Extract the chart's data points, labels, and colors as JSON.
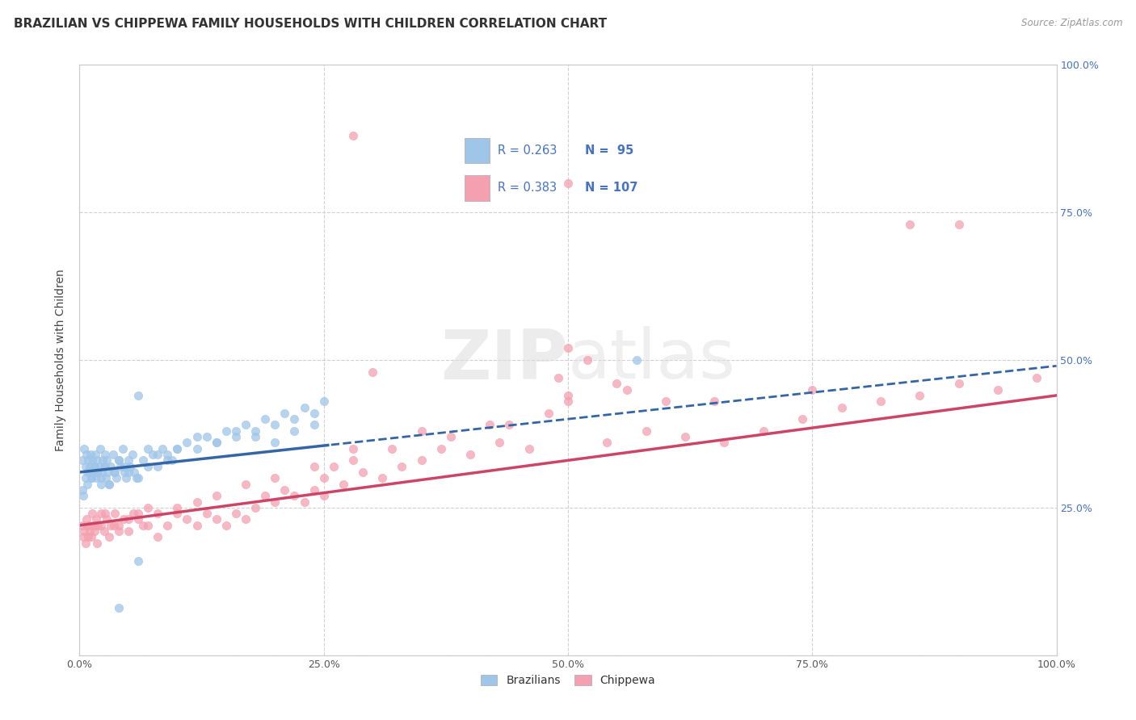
{
  "title": "BRAZILIAN VS CHIPPEWA FAMILY HOUSEHOLDS WITH CHILDREN CORRELATION CHART",
  "source": "Source: ZipAtlas.com",
  "ylabel": "Family Households with Children",
  "brazil_R": 0.263,
  "brazil_N": 95,
  "chippewa_R": 0.383,
  "chippewa_N": 107,
  "brazil_color": "#9fc5e8",
  "chippewa_color": "#f4a0b0",
  "brazil_line_color": "#3465a4",
  "chippewa_line_color": "#cc4466",
  "background_color": "#ffffff",
  "grid_color": "#cccccc",
  "right_axis_color": "#4472c4",
  "title_fontsize": 11,
  "xlim": [
    0,
    1
  ],
  "ylim": [
    0,
    1
  ],
  "brazil_x": [
    0.003,
    0.005,
    0.006,
    0.007,
    0.008,
    0.009,
    0.01,
    0.011,
    0.012,
    0.013,
    0.014,
    0.015,
    0.016,
    0.017,
    0.018,
    0.019,
    0.02,
    0.021,
    0.022,
    0.023,
    0.024,
    0.025,
    0.026,
    0.027,
    0.028,
    0.029,
    0.03,
    0.032,
    0.034,
    0.036,
    0.038,
    0.04,
    0.042,
    0.044,
    0.046,
    0.048,
    0.05,
    0.052,
    0.054,
    0.056,
    0.058,
    0.06,
    0.065,
    0.07,
    0.075,
    0.08,
    0.085,
    0.09,
    0.095,
    0.1,
    0.11,
    0.12,
    0.13,
    0.14,
    0.15,
    0.16,
    0.17,
    0.18,
    0.19,
    0.2,
    0.21,
    0.22,
    0.23,
    0.24,
    0.25,
    0.003,
    0.004,
    0.006,
    0.008,
    0.01,
    0.012,
    0.015,
    0.018,
    0.022,
    0.026,
    0.03,
    0.035,
    0.04,
    0.045,
    0.05,
    0.06,
    0.07,
    0.08,
    0.09,
    0.1,
    0.12,
    0.14,
    0.16,
    0.18,
    0.2,
    0.22,
    0.24,
    0.57,
    0.06,
    0.04
  ],
  "brazil_y": [
    0.33,
    0.35,
    0.32,
    0.34,
    0.31,
    0.33,
    0.32,
    0.34,
    0.3,
    0.33,
    0.31,
    0.32,
    0.34,
    0.3,
    0.33,
    0.31,
    0.32,
    0.35,
    0.29,
    0.31,
    0.33,
    0.32,
    0.34,
    0.3,
    0.33,
    0.31,
    0.29,
    0.32,
    0.34,
    0.31,
    0.3,
    0.33,
    0.32,
    0.35,
    0.31,
    0.3,
    0.33,
    0.32,
    0.34,
    0.31,
    0.3,
    0.44,
    0.33,
    0.35,
    0.34,
    0.32,
    0.35,
    0.34,
    0.33,
    0.35,
    0.36,
    0.35,
    0.37,
    0.36,
    0.38,
    0.37,
    0.39,
    0.38,
    0.4,
    0.39,
    0.41,
    0.4,
    0.42,
    0.41,
    0.43,
    0.28,
    0.27,
    0.3,
    0.29,
    0.31,
    0.3,
    0.32,
    0.31,
    0.3,
    0.32,
    0.29,
    0.31,
    0.33,
    0.32,
    0.31,
    0.3,
    0.32,
    0.34,
    0.33,
    0.35,
    0.37,
    0.36,
    0.38,
    0.37,
    0.36,
    0.38,
    0.39,
    0.5,
    0.16,
    0.08
  ],
  "chippewa_x": [
    0.003,
    0.005,
    0.007,
    0.009,
    0.011,
    0.013,
    0.015,
    0.017,
    0.019,
    0.022,
    0.025,
    0.028,
    0.032,
    0.036,
    0.04,
    0.045,
    0.05,
    0.055,
    0.06,
    0.065,
    0.07,
    0.08,
    0.09,
    0.1,
    0.11,
    0.12,
    0.13,
    0.14,
    0.15,
    0.16,
    0.17,
    0.18,
    0.19,
    0.2,
    0.21,
    0.22,
    0.23,
    0.24,
    0.25,
    0.27,
    0.29,
    0.31,
    0.33,
    0.35,
    0.37,
    0.4,
    0.43,
    0.46,
    0.5,
    0.54,
    0.58,
    0.62,
    0.66,
    0.7,
    0.74,
    0.78,
    0.82,
    0.86,
    0.9,
    0.94,
    0.98,
    0.004,
    0.006,
    0.008,
    0.01,
    0.012,
    0.015,
    0.018,
    0.022,
    0.026,
    0.03,
    0.035,
    0.04,
    0.05,
    0.06,
    0.07,
    0.08,
    0.1,
    0.12,
    0.14,
    0.17,
    0.2,
    0.24,
    0.28,
    0.32,
    0.38,
    0.44,
    0.5,
    0.56,
    0.65,
    0.75,
    0.28,
    0.5,
    0.5,
    0.85,
    0.9,
    0.3,
    0.52,
    0.55,
    0.49,
    0.25,
    0.26,
    0.28,
    0.35,
    0.42,
    0.48,
    0.6
  ],
  "chippewa_y": [
    0.22,
    0.21,
    0.23,
    0.2,
    0.22,
    0.24,
    0.21,
    0.23,
    0.22,
    0.24,
    0.21,
    0.23,
    0.22,
    0.24,
    0.22,
    0.23,
    0.21,
    0.24,
    0.23,
    0.22,
    0.25,
    0.24,
    0.22,
    0.25,
    0.23,
    0.22,
    0.24,
    0.23,
    0.22,
    0.24,
    0.23,
    0.25,
    0.27,
    0.26,
    0.28,
    0.27,
    0.26,
    0.28,
    0.3,
    0.29,
    0.31,
    0.3,
    0.32,
    0.33,
    0.35,
    0.34,
    0.36,
    0.35,
    0.44,
    0.36,
    0.38,
    0.37,
    0.36,
    0.38,
    0.4,
    0.42,
    0.43,
    0.44,
    0.46,
    0.45,
    0.47,
    0.2,
    0.19,
    0.22,
    0.21,
    0.2,
    0.22,
    0.19,
    0.22,
    0.24,
    0.2,
    0.22,
    0.21,
    0.23,
    0.24,
    0.22,
    0.2,
    0.24,
    0.26,
    0.27,
    0.29,
    0.3,
    0.32,
    0.33,
    0.35,
    0.37,
    0.39,
    0.43,
    0.45,
    0.43,
    0.45,
    0.88,
    0.8,
    0.52,
    0.73,
    0.73,
    0.48,
    0.5,
    0.46,
    0.47,
    0.27,
    0.32,
    0.35,
    0.38,
    0.39,
    0.41,
    0.43
  ]
}
